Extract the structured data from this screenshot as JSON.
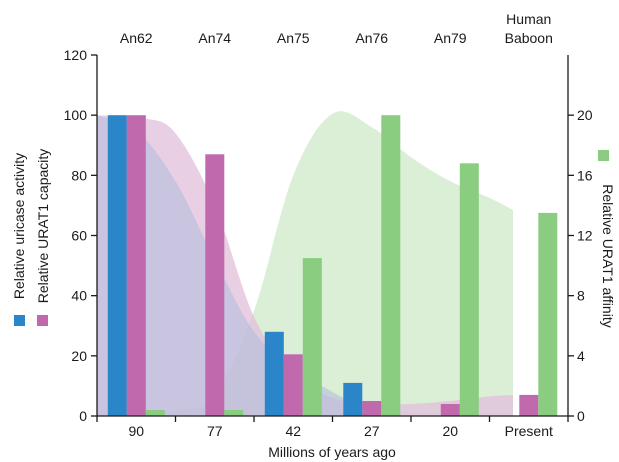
{
  "chart_data": {
    "type": "bar",
    "xlabel": "Millions of years ago",
    "categories": [
      "90",
      "77",
      "42",
      "27",
      "20",
      "Present"
    ],
    "top_labels": [
      [
        "An62"
      ],
      [
        "An74"
      ],
      [
        "An75"
      ],
      [
        "An76"
      ],
      [
        "An79"
      ],
      [
        "Human",
        "Baboon"
      ]
    ],
    "ylabel_left_1": "Relative uricase activity",
    "ylabel_left_2": "Relative URAT1 capacity",
    "ylabel_right": "Relative URAT1 affinity",
    "ylim_left": [
      0,
      120
    ],
    "yticks_left": [
      0,
      20,
      40,
      60,
      80,
      100,
      120
    ],
    "ylim_right": [
      0,
      24
    ],
    "yticks_right": [
      0,
      4,
      8,
      12,
      16,
      20
    ],
    "series": [
      {
        "name": "Relative uricase activity",
        "axis": "left",
        "color": "#2a86c8",
        "values": [
          100,
          null,
          28,
          11,
          null,
          null
        ]
      },
      {
        "name": "Relative URAT1 capacity",
        "axis": "left",
        "color": "#c06aad",
        "values": [
          100,
          87,
          20.5,
          5,
          4,
          7
        ]
      },
      {
        "name": "Relative URAT1 affinity",
        "axis": "right",
        "color": "#8acc80",
        "values": [
          0.4,
          0.4,
          10.5,
          20,
          16.8,
          13.5
        ]
      }
    ],
    "areas": [
      {
        "series": "Relative URAT1 affinity",
        "axis": "right",
        "color": "#cfe8c8",
        "opacity": 0.75,
        "points": [
          [
            0,
            0.35
          ],
          [
            1.0,
            0.35
          ],
          [
            1.5,
            1.4
          ],
          [
            2.0,
            7
          ],
          [
            2.5,
            16
          ],
          [
            3.0,
            20.1
          ],
          [
            3.5,
            19.2
          ],
          [
            4.0,
            17.2
          ],
          [
            4.5,
            15.6
          ],
          [
            5.0,
            14.5
          ],
          [
            5.3,
            13.7
          ]
        ]
      },
      {
        "series": "Relative URAT1 capacity",
        "axis": "left",
        "color": "#e2bfdb",
        "opacity": 0.75,
        "points": [
          [
            0,
            100
          ],
          [
            0.6,
            99
          ],
          [
            1.0,
            94
          ],
          [
            1.5,
            70
          ],
          [
            2.0,
            33
          ],
          [
            2.5,
            14
          ],
          [
            3.0,
            6
          ],
          [
            3.5,
            4
          ],
          [
            4.0,
            4
          ],
          [
            4.5,
            5
          ],
          [
            5.0,
            6.5
          ],
          [
            5.3,
            7
          ]
        ]
      },
      {
        "series": "Relative uricase activity",
        "axis": "left",
        "color": "#aebbdd",
        "opacity": 0.55,
        "points": [
          [
            0,
            100
          ],
          [
            0.5,
            95
          ],
          [
            1.0,
            78
          ],
          [
            1.5,
            52
          ],
          [
            2.0,
            28
          ],
          [
            2.5,
            16
          ],
          [
            3.0,
            8
          ],
          [
            3.5,
            1
          ]
        ]
      }
    ]
  }
}
